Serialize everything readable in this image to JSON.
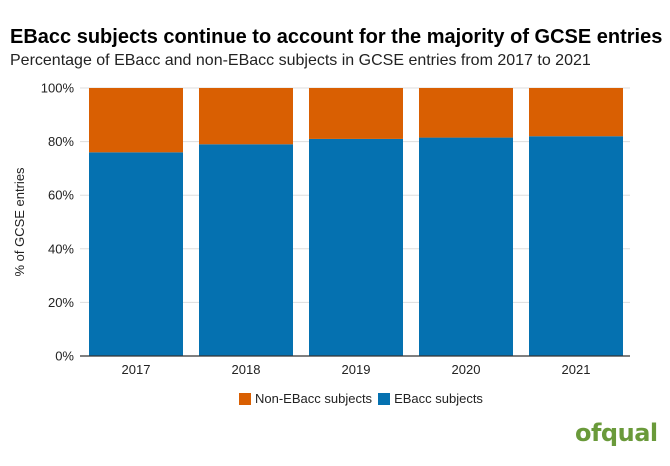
{
  "title": "EBacc subjects continue to account for the majority of GCSE entries",
  "subtitle": "Percentage of EBacc and non-EBacc subjects in GCSE entries from 2017 to 2021",
  "logo_text": "ofqual",
  "colors": {
    "non_ebacc": "#d95f02",
    "ebacc": "#0571b0",
    "gridline": "#dddddd",
    "axis": "#333333",
    "logo": "#6a9a3a"
  },
  "chart_data": {
    "type": "bar",
    "stacked": true,
    "categories": [
      "2017",
      "2018",
      "2019",
      "2020",
      "2021"
    ],
    "series": [
      {
        "name": "EBacc subjects",
        "values": [
          76,
          79,
          81,
          81.5,
          82
        ]
      },
      {
        "name": "Non-EBacc subjects",
        "values": [
          24,
          21,
          19,
          18.5,
          18
        ]
      }
    ],
    "ylabel": "% of GCSE entries",
    "xlabel": "",
    "ylim": [
      0,
      100
    ],
    "yticks": [
      0,
      20,
      40,
      60,
      80,
      100
    ],
    "ytick_labels": [
      "0%",
      "20%",
      "40%",
      "60%",
      "80%",
      "100%"
    ],
    "grid": true,
    "legend": {
      "placement": "bottom",
      "entries": [
        "Non-EBacc subjects",
        "EBacc subjects"
      ]
    }
  }
}
